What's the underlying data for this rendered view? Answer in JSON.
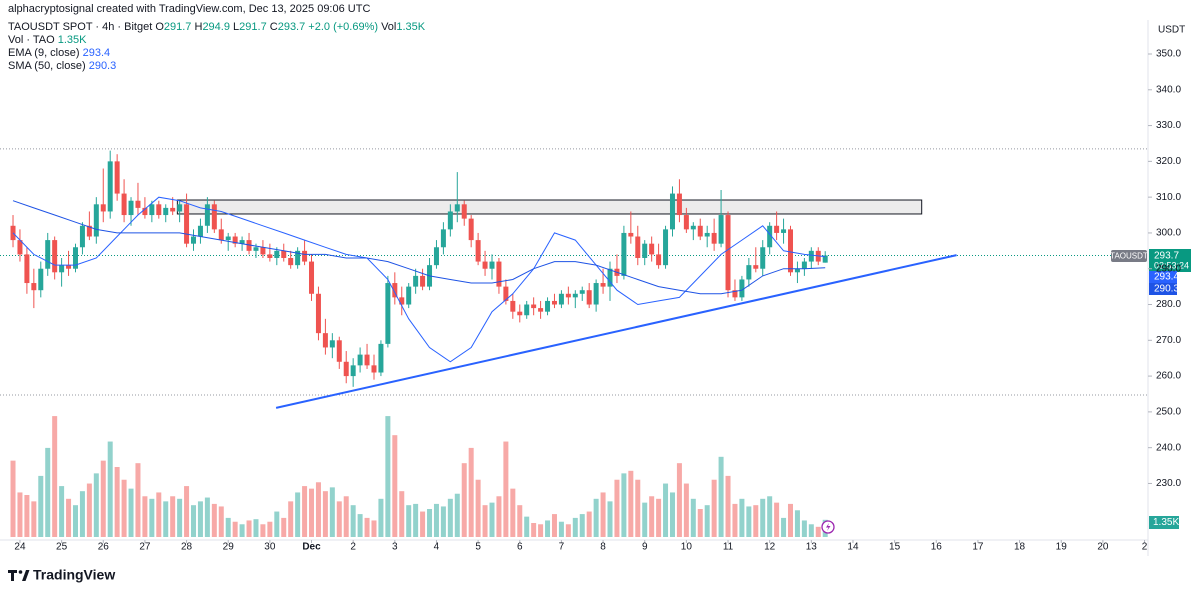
{
  "chart_data": {
    "type": "candlestick",
    "credit": "alphacryptosignal created with TradingView.com, Dec 13, 2025 09:06 UTC",
    "legend": {
      "symbol": "TAOUSDT SPOT · 4h · Bitget",
      "o": "O",
      "h": "H",
      "l": "L",
      "c": "C",
      "change": "+2.0 (+0.69%)",
      "vol_label": "Vol",
      "volume": "1.35K",
      "vol_series": "Vol · TAO"
    },
    "currency": "USDT",
    "ticker_tag": "TAOUSDT",
    "countdown": "02:53:24",
    "branding": "TradingView",
    "up_color": "#26a69a",
    "down_color": "#ef5350",
    "x": [
      -4,
      0,
      4,
      8,
      12,
      16,
      20,
      24,
      28,
      32,
      36,
      40,
      44,
      48,
      52,
      56,
      60,
      64,
      68,
      72,
      76,
      80,
      84,
      88,
      92,
      96,
      100,
      104,
      108,
      112,
      116,
      120,
      124,
      128,
      132,
      136,
      140,
      144,
      148,
      152,
      156,
      160,
      164,
      168,
      172,
      176,
      180,
      184,
      188,
      192,
      196,
      200,
      204,
      208,
      212,
      216,
      220,
      224,
      228,
      232,
      236,
      240,
      244,
      248,
      252,
      256,
      260,
      264,
      268,
      272,
      276,
      280,
      284,
      288,
      292,
      296,
      300,
      304,
      308,
      312,
      316,
      320,
      324,
      328,
      332,
      336,
      340,
      344,
      348,
      352,
      356,
      360,
      364,
      368,
      372,
      376,
      380,
      384,
      388,
      392,
      396,
      400,
      404,
      408,
      412,
      416,
      420,
      424,
      428,
      432,
      436,
      440,
      444,
      448,
      452,
      456,
      460,
      464
    ],
    "open": [
      302,
      298,
      294,
      286,
      284,
      290,
      298,
      289,
      291,
      290,
      296,
      302,
      299,
      308,
      306,
      320,
      311,
      305,
      309,
      307,
      305,
      308,
      305,
      307,
      306,
      308,
      297,
      299,
      302,
      308,
      301,
      298,
      299,
      297,
      298,
      295,
      296,
      294,
      293,
      295,
      293,
      291,
      295,
      292,
      283,
      272,
      268,
      270,
      264,
      260,
      263,
      266,
      263,
      261,
      269,
      286,
      282,
      280,
      285,
      288,
      285,
      291,
      296,
      301,
      306,
      308,
      304,
      298,
      292,
      290,
      292,
      285,
      281,
      278,
      277,
      280,
      279,
      278,
      281,
      280,
      283,
      282,
      283,
      284,
      280,
      286,
      285,
      290,
      288,
      300,
      299,
      293,
      297,
      294,
      291,
      301,
      311,
      305,
      301,
      302,
      299,
      300,
      297,
      305,
      284,
      282,
      287,
      291,
      290,
      296,
      302,
      300,
      301,
      289,
      290,
      292,
      295,
      291.7
    ],
    "high": [
      305,
      301,
      296,
      290,
      292,
      300,
      299,
      293,
      295,
      297,
      303,
      306,
      310,
      318,
      323,
      322,
      315,
      310,
      314,
      310,
      309,
      309,
      308,
      310,
      309,
      311,
      301,
      304,
      310,
      309,
      304,
      300,
      300,
      299,
      300,
      297,
      298,
      297,
      296,
      297,
      295,
      296,
      298,
      294,
      285,
      276,
      272,
      271,
      267,
      265,
      268,
      269,
      266,
      270,
      288,
      289,
      285,
      286,
      290,
      290,
      293,
      298,
      303,
      308,
      317,
      309,
      305,
      300,
      295,
      294,
      293,
      287,
      283,
      280,
      281,
      282,
      281,
      282,
      283,
      284,
      285,
      284,
      285,
      286,
      287,
      290,
      292,
      294,
      302,
      306,
      302,
      298,
      299,
      297,
      302,
      313,
      315,
      307,
      303,
      304,
      302,
      304,
      312,
      306,
      287,
      288,
      293,
      296,
      298,
      303,
      306,
      304,
      302,
      292,
      293,
      296,
      296,
      294.9
    ],
    "low": [
      296,
      292,
      283,
      279,
      282,
      288,
      287,
      285,
      288,
      289,
      294,
      298,
      297,
      303,
      304,
      309,
      303,
      302,
      305,
      304,
      303,
      304,
      303,
      305,
      303,
      296,
      295,
      297,
      300,
      300,
      297,
      295,
      296,
      295,
      294,
      293,
      293,
      292,
      291,
      292,
      290,
      290,
      291,
      281,
      270,
      266,
      265,
      262,
      258,
      257,
      261,
      262,
      259,
      260,
      268,
      280,
      277,
      279,
      283,
      284,
      284,
      290,
      294,
      299,
      303,
      302,
      296,
      291,
      288,
      287,
      283,
      280,
      276,
      275,
      276,
      277,
      276,
      277,
      279,
      279,
      280,
      279,
      281,
      279,
      278,
      283,
      281,
      286,
      287,
      297,
      291,
      291,
      292,
      290,
      290,
      299,
      303,
      300,
      298,
      298,
      296,
      295,
      296,
      282,
      281,
      281,
      285,
      289,
      288,
      294,
      298,
      297,
      288,
      286,
      288,
      290,
      291,
      291.7
    ],
    "close": [
      298,
      294,
      286,
      284,
      290,
      298,
      289,
      291,
      290,
      296,
      302,
      299,
      308,
      306,
      320,
      311,
      305,
      309,
      307,
      305,
      308,
      305,
      307,
      306,
      308,
      297,
      299,
      302,
      308,
      301,
      298,
      299,
      297,
      298,
      295,
      296,
      294,
      293,
      295,
      293,
      291,
      295,
      292,
      283,
      272,
      268,
      270,
      264,
      260,
      263,
      266,
      263,
      261,
      269,
      286,
      282,
      280,
      285,
      288,
      285,
      291,
      296,
      301,
      306,
      308,
      304,
      298,
      292,
      290,
      292,
      285,
      281,
      278,
      277,
      280,
      279,
      278,
      281,
      280,
      283,
      282,
      283,
      284,
      280,
      286,
      285,
      290,
      288,
      300,
      299,
      293,
      297,
      294,
      291,
      301,
      311,
      305,
      301,
      302,
      299,
      300,
      297,
      305,
      284,
      282,
      287,
      291,
      290,
      296,
      302,
      300,
      301,
      289,
      290,
      292,
      295,
      292,
      293.7
    ],
    "volume": [
      6,
      3.5,
      3.3,
      2.8,
      4.8,
      7,
      9.5,
      4,
      3,
      2.5,
      3.6,
      4.2,
      5,
      6,
      7.5,
      5.5,
      4.5,
      3.8,
      5.8,
      3.2,
      3,
      3.5,
      2.8,
      3.2,
      3,
      4,
      2.5,
      2.8,
      3.1,
      2.6,
      2.4,
      1.5,
      1.2,
      1,
      1.3,
      1.4,
      1,
      1.2,
      2,
      1.5,
      2.8,
      3.5,
      4,
      3.8,
      4.3,
      3.6,
      3.9,
      2.8,
      3.2,
      2.5,
      1.8,
      1.5,
      1.3,
      3,
      9.5,
      8,
      3.6,
      2.5,
      2.6,
      2,
      2.2,
      2.6,
      2.4,
      3,
      3.4,
      5.8,
      7,
      4.5,
      2.5,
      2.7,
      3.2,
      7.5,
      3.8,
      2.5,
      1.6,
      1.1,
      1,
      1.3,
      1.8,
      1.2,
      1,
      1.5,
      1.8,
      2,
      3,
      3.5,
      2.8,
      4.5,
      5,
      5.2,
      4.5,
      2.7,
      3.2,
      3,
      4.2,
      3.5,
      5.8,
      4.2,
      3,
      2.2,
      2.5,
      4.5,
      6.3,
      4.8,
      2.6,
      3,
      2.4,
      2.5,
      3,
      3.2,
      2.7,
      1.5,
      2.6,
      2.1,
      1.3,
      1,
      0.8,
      1.35
    ],
    "volume_lim": [
      0,
      11
    ],
    "xlim": [
      -11.5,
      650
    ],
    "xticks": [
      {
        "value": 0,
        "label": "24"
      },
      {
        "value": 24,
        "label": "25"
      },
      {
        "value": 48,
        "label": "26"
      },
      {
        "value": 72,
        "label": "27"
      },
      {
        "value": 96,
        "label": "28"
      },
      {
        "value": 120,
        "label": "29"
      },
      {
        "value": 144,
        "label": "30"
      },
      {
        "value": 168,
        "label": "Dec"
      },
      {
        "value": 192,
        "label": "2"
      },
      {
        "value": 216,
        "label": "3"
      },
      {
        "value": 240,
        "label": "4"
      },
      {
        "value": 264,
        "label": "5"
      },
      {
        "value": 288,
        "label": "6"
      },
      {
        "value": 312,
        "label": "7"
      },
      {
        "value": 336,
        "label": "8"
      },
      {
        "value": 360,
        "label": "9"
      },
      {
        "value": 384,
        "label": "10"
      },
      {
        "value": 408,
        "label": "11"
      },
      {
        "value": 432,
        "label": "12"
      },
      {
        "value": 456,
        "label": "13"
      },
      {
        "value": 480,
        "label": "14"
      },
      {
        "value": 504,
        "label": "15"
      },
      {
        "value": 528,
        "label": "16"
      },
      {
        "value": 552,
        "label": "17"
      },
      {
        "value": 576,
        "label": "18"
      },
      {
        "value": 600,
        "label": "19"
      },
      {
        "value": 624,
        "label": "20"
      },
      {
        "value": 648,
        "label": "2"
      }
    ],
    "ylim": [
      214.2,
      359.5
    ],
    "yticks": [
      {
        "value": 230,
        "label": "230.0"
      },
      {
        "value": 240,
        "label": "240.0"
      },
      {
        "value": 250,
        "label": "250.0"
      },
      {
        "value": 260,
        "label": "260.0"
      },
      {
        "value": 270,
        "label": "270.0"
      },
      {
        "value": 280,
        "label": "280.0"
      },
      {
        "value": 290,
        "label": "290.0"
      },
      {
        "value": 300,
        "label": "300.0"
      },
      {
        "value": 310,
        "label": "310.0"
      },
      {
        "value": 320,
        "label": "320.0"
      },
      {
        "value": 330,
        "label": "330.0"
      },
      {
        "value": 340,
        "label": "340.0"
      },
      {
        "value": 350,
        "label": "350.0"
      }
    ],
    "indicators": [
      {
        "name": "EMA (9, close)",
        "color": "#2962ff",
        "x": [
          -4,
          8,
          20,
          32,
          44,
          56,
          68,
          80,
          92,
          104,
          116,
          128,
          140,
          152,
          164,
          176,
          188,
          200,
          212,
          224,
          236,
          248,
          260,
          272,
          284,
          296,
          308,
          320,
          332,
          344,
          356,
          368,
          380,
          392,
          404,
          416,
          428,
          440,
          452,
          464
        ],
        "values": [
          300,
          294,
          291,
          291,
          293,
          299,
          305,
          310,
          309,
          307,
          306,
          304,
          302,
          300,
          298,
          296,
          294,
          293,
          287,
          276,
          268,
          264,
          268,
          278,
          283,
          290,
          300,
          298,
          291,
          284,
          280,
          281,
          282,
          288,
          294,
          298,
          302,
          295,
          294,
          293.4
        ]
      },
      {
        "name": "SMA (50, close)",
        "color": "#1e53e5",
        "x": [
          -4,
          8,
          20,
          32,
          44,
          56,
          68,
          80,
          92,
          104,
          116,
          128,
          140,
          152,
          164,
          176,
          188,
          200,
          212,
          224,
          236,
          248,
          260,
          272,
          284,
          296,
          308,
          320,
          332,
          344,
          356,
          368,
          380,
          392,
          404,
          416,
          428,
          440,
          452,
          464
        ],
        "values": [
          309,
          307,
          305,
          303,
          301,
          300,
          300,
          300,
          300,
          299,
          298,
          297,
          296,
          295,
          294,
          294,
          293,
          293,
          292,
          290,
          288,
          287,
          286,
          286,
          287,
          290,
          292,
          292,
          291,
          289,
          287,
          285,
          284,
          283,
          283,
          284,
          288,
          290,
          290,
          290.3
        ]
      }
    ],
    "zone": {
      "x": [
        90.7,
        519.6
      ],
      "y": [
        305.3,
        309.2
      ]
    },
    "trendline": {
      "x": [
        147.6,
        539.7
      ],
      "y": [
        251.1,
        293.8
      ],
      "color": "#2962ff"
    },
    "levels": [
      323.5,
      254.7
    ]
  }
}
